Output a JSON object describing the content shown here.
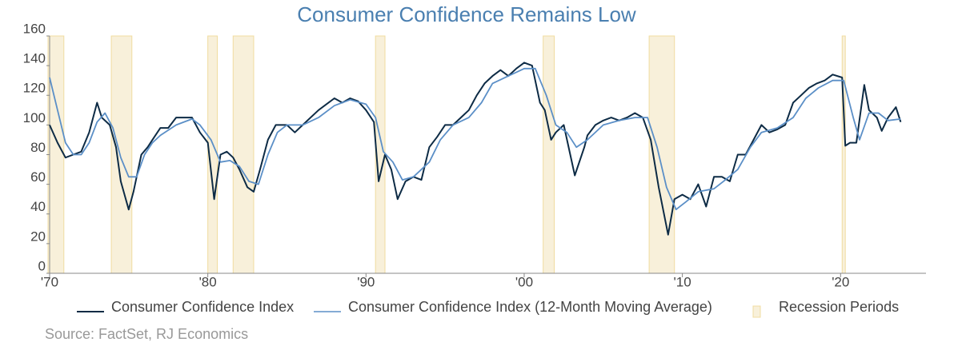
{
  "chart_data": {
    "type": "line",
    "title": "Consumer Confidence Remains Low",
    "source": "Source: FactSet, RJ Economics",
    "xlim": [
      1970,
      2025.4
    ],
    "xticks": [
      {
        "value": 1970,
        "label": "'70"
      },
      {
        "value": 1980,
        "label": "'80"
      },
      {
        "value": 1990,
        "label": "'90"
      },
      {
        "value": 2000,
        "label": "'00"
      },
      {
        "value": 2010,
        "label": "'10"
      },
      {
        "value": 2020,
        "label": "'20"
      }
    ],
    "ylim": [
      0,
      160
    ],
    "yticks": [
      0,
      20,
      40,
      60,
      80,
      100,
      120,
      140,
      160
    ],
    "recession_name": "Recession Periods",
    "recession_color": "#f8f0da",
    "recessions": [
      [
        1969.9,
        1970.9
      ],
      [
        1973.9,
        1975.2
      ],
      [
        1980.0,
        1980.6
      ],
      [
        1981.6,
        1982.9
      ],
      [
        1990.6,
        1991.2
      ],
      [
        2001.2,
        2001.9
      ],
      [
        2007.9,
        2009.5
      ],
      [
        2020.1,
        2020.3
      ]
    ],
    "series": [
      {
        "name": "Consumer Confidence Index",
        "color": "#0d2b45",
        "x": [
          1970.0,
          1970.5,
          1971.0,
          1971.5,
          1972.0,
          1972.5,
          1973.0,
          1973.3,
          1973.8,
          1974.2,
          1974.5,
          1975.0,
          1975.3,
          1975.8,
          1976.2,
          1976.5,
          1977.0,
          1977.5,
          1978.0,
          1978.5,
          1979.0,
          1979.5,
          1980.0,
          1980.4,
          1980.8,
          1981.2,
          1981.6,
          1982.0,
          1982.5,
          1982.9,
          1983.3,
          1983.8,
          1984.3,
          1985.0,
          1985.5,
          1986.0,
          1987.0,
          1988.0,
          1988.5,
          1989.0,
          1989.5,
          1990.0,
          1990.5,
          1990.8,
          1991.2,
          1991.6,
          1992.0,
          1992.5,
          1993.0,
          1993.5,
          1994.0,
          1994.5,
          1995.0,
          1995.5,
          1996.0,
          1996.5,
          1997.0,
          1997.5,
          1998.0,
          1998.5,
          1999.0,
          1999.5,
          2000.0,
          2000.5,
          2001.0,
          2001.3,
          2001.7,
          2002.0,
          2002.5,
          2003.2,
          2003.8,
          2004.0,
          2004.5,
          2005.0,
          2005.5,
          2006.0,
          2006.5,
          2007.0,
          2007.5,
          2008.0,
          2008.5,
          2009.1,
          2009.5,
          2010.0,
          2010.5,
          2011.0,
          2011.5,
          2012.0,
          2012.5,
          2013.0,
          2013.5,
          2014.0,
          2014.5,
          2015.0,
          2015.5,
          2016.0,
          2016.5,
          2017.0,
          2017.5,
          2018.0,
          2018.5,
          2019.0,
          2019.5,
          2020.1,
          2020.3,
          2020.6,
          2021.0,
          2021.5,
          2021.8,
          2022.3,
          2022.6,
          2023.0,
          2023.5,
          2023.8
        ],
        "values": [
          100,
          88,
          78,
          80,
          82,
          95,
          115,
          105,
          100,
          85,
          62,
          43,
          55,
          80,
          85,
          90,
          98,
          98,
          105,
          105,
          105,
          95,
          88,
          50,
          80,
          82,
          78,
          70,
          58,
          55,
          70,
          90,
          100,
          100,
          95,
          100,
          110,
          118,
          115,
          118,
          116,
          110,
          102,
          62,
          80,
          70,
          50,
          62,
          65,
          63,
          85,
          92,
          100,
          100,
          105,
          110,
          120,
          128,
          133,
          137,
          133,
          138,
          142,
          140,
          115,
          110,
          90,
          95,
          100,
          66,
          85,
          93,
          100,
          103,
          105,
          103,
          105,
          108,
          105,
          90,
          58,
          26,
          50,
          53,
          50,
          60,
          45,
          65,
          65,
          62,
          80,
          80,
          90,
          100,
          95,
          97,
          100,
          115,
          120,
          125,
          128,
          130,
          134,
          132,
          86,
          88,
          88,
          127,
          110,
          105,
          96,
          105,
          112,
          102
        ]
      },
      {
        "name": "Consumer Confidence Index (12-Month Moving Average)",
        "color": "#5b8fc7",
        "x": [
          1970.0,
          1970.5,
          1971.0,
          1971.5,
          1972.0,
          1972.5,
          1973.0,
          1973.5,
          1974.0,
          1974.5,
          1975.0,
          1975.5,
          1976.0,
          1976.5,
          1977.0,
          1978.0,
          1979.0,
          1979.5,
          1980.2,
          1980.8,
          1981.4,
          1982.0,
          1982.6,
          1983.2,
          1983.8,
          1984.4,
          1985.0,
          1986.0,
          1987.0,
          1988.0,
          1989.0,
          1990.0,
          1990.6,
          1991.1,
          1991.7,
          1992.3,
          1993.0,
          1994.0,
          1994.7,
          1995.5,
          1996.5,
          1997.3,
          1998.0,
          1999.0,
          2000.0,
          2000.7,
          2001.4,
          2002.0,
          2002.7,
          2003.3,
          2004.0,
          2005.0,
          2006.0,
          2007.0,
          2007.8,
          2008.4,
          2009.0,
          2009.6,
          2010.2,
          2011.0,
          2012.0,
          2012.6,
          2013.5,
          2014.3,
          2015.0,
          2016.0,
          2017.0,
          2017.8,
          2018.6,
          2019.5,
          2020.2,
          2020.8,
          2021.2,
          2021.8,
          2022.4,
          2023.0,
          2023.8
        ],
        "values": [
          132,
          110,
          88,
          80,
          80,
          88,
          102,
          108,
          98,
          78,
          65,
          65,
          80,
          88,
          93,
          100,
          104,
          100,
          90,
          75,
          76,
          72,
          62,
          60,
          80,
          95,
          100,
          100,
          105,
          113,
          117,
          114,
          105,
          82,
          75,
          63,
          65,
          75,
          90,
          100,
          105,
          115,
          128,
          133,
          138,
          138,
          120,
          100,
          95,
          85,
          90,
          100,
          103,
          105,
          105,
          85,
          58,
          43,
          48,
          55,
          57,
          62,
          70,
          85,
          95,
          98,
          105,
          118,
          125,
          130,
          130,
          105,
          90,
          108,
          108,
          103,
          104
        ]
      }
    ]
  }
}
